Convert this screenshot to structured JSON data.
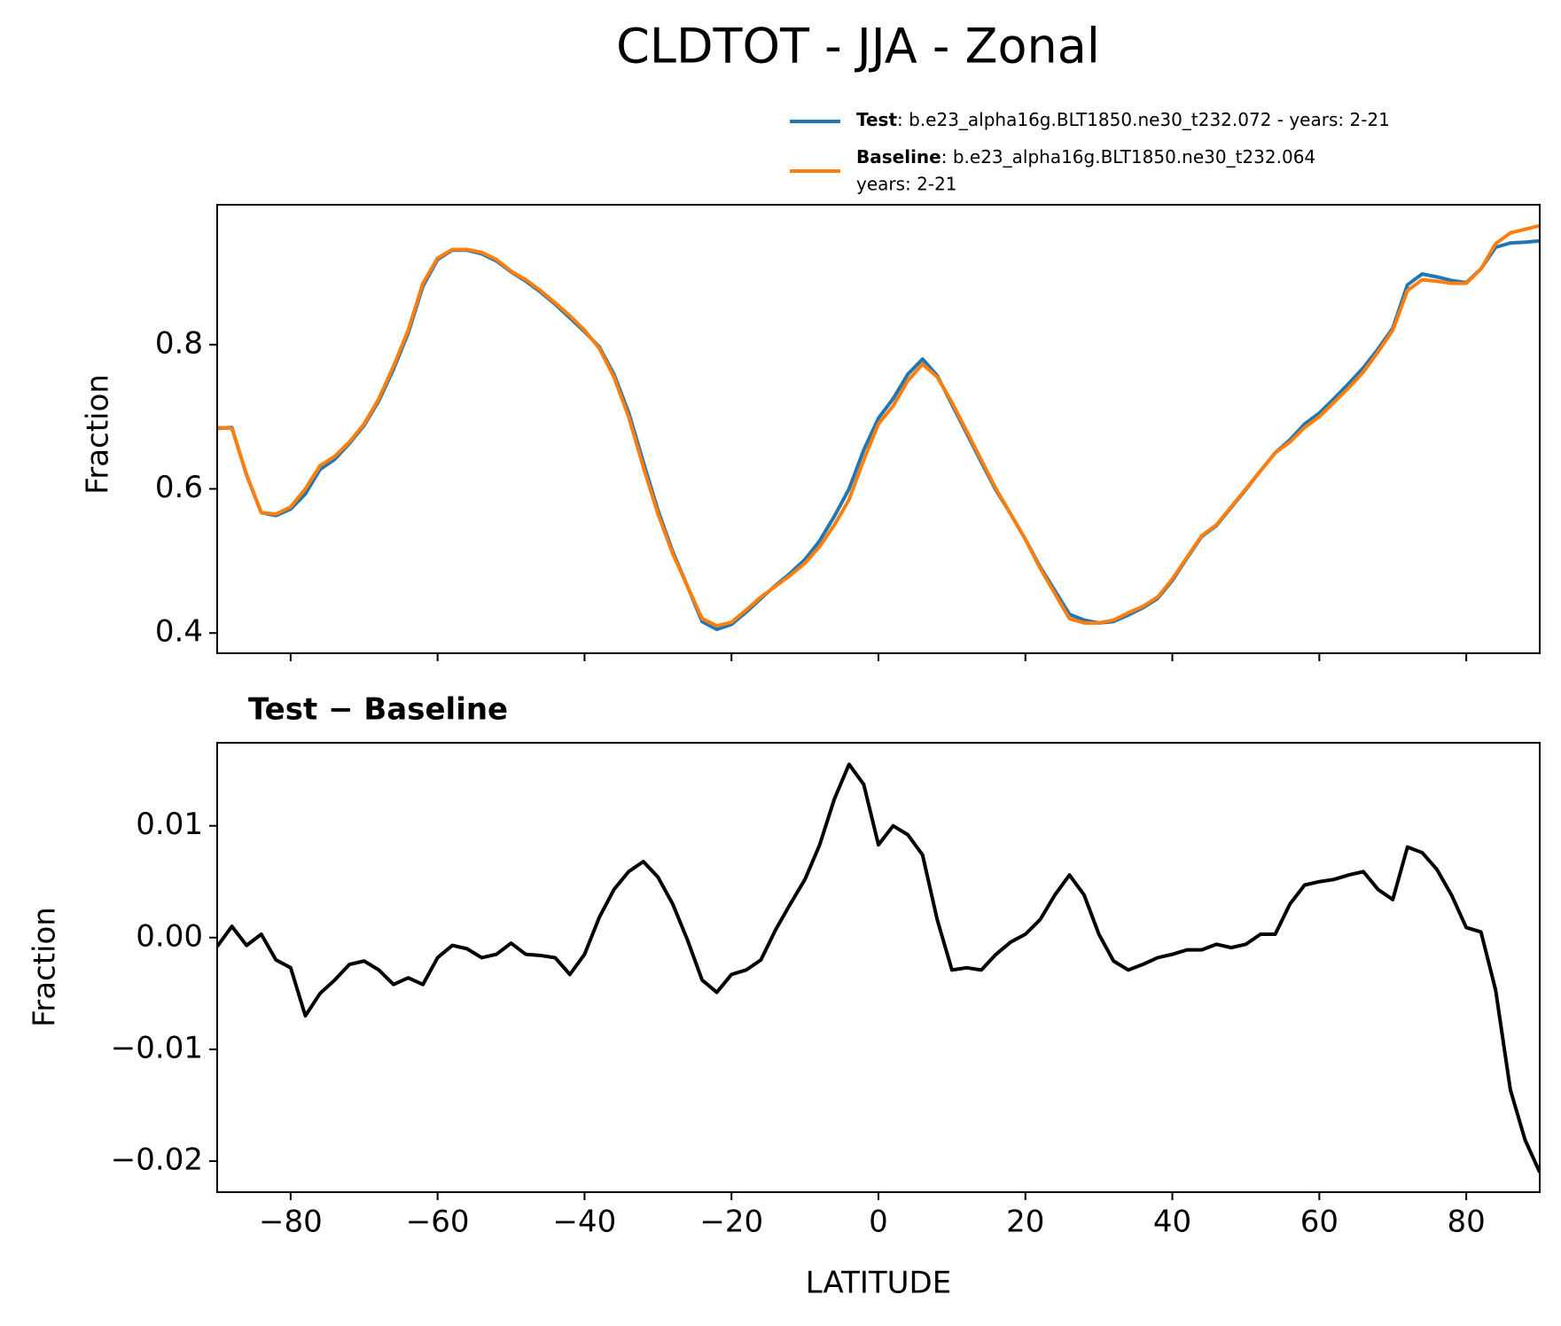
{
  "chart_data": [
    {
      "type": "line",
      "title": "CLDTOT - JJA - Zonal",
      "ylabel": "Fraction",
      "x": [
        -90,
        -88,
        -86,
        -84,
        -82,
        -80,
        -78,
        -76,
        -74,
        -72,
        -70,
        -68,
        -66,
        -64,
        -62,
        -60,
        -58,
        -56,
        -54,
        -52,
        -50,
        -48,
        -46,
        -44,
        -42,
        -40,
        -38,
        -36,
        -34,
        -32,
        -30,
        -28,
        -26,
        -24,
        -22,
        -20,
        -18,
        -16,
        -14,
        -12,
        -10,
        -8,
        -6,
        -4,
        -2,
        0,
        2,
        4,
        6,
        8,
        10,
        12,
        14,
        16,
        18,
        20,
        22,
        24,
        26,
        28,
        30,
        32,
        34,
        36,
        38,
        40,
        42,
        44,
        46,
        48,
        50,
        52,
        54,
        56,
        58,
        60,
        62,
        64,
        66,
        68,
        70,
        72,
        74,
        76,
        78,
        80,
        82,
        84,
        86,
        88,
        90
      ],
      "series": [
        {
          "name": "Test",
          "legend_text": ": b.e23_alpha16g.BLT1850.ne30_t232.072 - years: 2-21",
          "color": "#1f77b4",
          "values": [
            0.684,
            0.685,
            0.619,
            0.567,
            0.563,
            0.572,
            0.593,
            0.627,
            0.641,
            0.663,
            0.688,
            0.722,
            0.766,
            0.816,
            0.881,
            0.918,
            0.931,
            0.931,
            0.926,
            0.916,
            0.901,
            0.888,
            0.873,
            0.856,
            0.837,
            0.818,
            0.797,
            0.759,
            0.706,
            0.637,
            0.57,
            0.513,
            0.465,
            0.416,
            0.405,
            0.412,
            0.429,
            0.448,
            0.466,
            0.483,
            0.502,
            0.528,
            0.562,
            0.6,
            0.654,
            0.698,
            0.725,
            0.759,
            0.78,
            0.757,
            0.717,
            0.677,
            0.637,
            0.598,
            0.565,
            0.53,
            0.492,
            0.459,
            0.426,
            0.418,
            0.414,
            0.416,
            0.425,
            0.435,
            0.448,
            0.473,
            0.504,
            0.534,
            0.549,
            0.574,
            0.599,
            0.625,
            0.65,
            0.668,
            0.69,
            0.705,
            0.725,
            0.746,
            0.768,
            0.794,
            0.823,
            0.883,
            0.898,
            0.894,
            0.889,
            0.886,
            0.905,
            0.935,
            0.941,
            0.942,
            0.944
          ]
        },
        {
          "name": "Baseline",
          "legend_text": [
            ": b.e23_alpha16g.BLT1850.ne30_t232.064",
            "years: 2-21"
          ],
          "color": "#ff7f0e",
          "values": [
            0.685,
            0.684,
            0.62,
            0.567,
            0.565,
            0.575,
            0.6,
            0.632,
            0.645,
            0.665,
            0.69,
            0.725,
            0.77,
            0.82,
            0.885,
            0.92,
            0.932,
            0.932,
            0.928,
            0.918,
            0.902,
            0.89,
            0.875,
            0.858,
            0.84,
            0.82,
            0.795,
            0.755,
            0.7,
            0.63,
            0.565,
            0.51,
            0.465,
            0.42,
            0.41,
            0.415,
            0.432,
            0.45,
            0.465,
            0.48,
            0.497,
            0.52,
            0.55,
            0.585,
            0.64,
            0.69,
            0.715,
            0.75,
            0.773,
            0.755,
            0.72,
            0.68,
            0.64,
            0.6,
            0.565,
            0.53,
            0.49,
            0.455,
            0.42,
            0.414,
            0.414,
            0.418,
            0.428,
            0.437,
            0.45,
            0.475,
            0.505,
            0.535,
            0.55,
            0.575,
            0.6,
            0.625,
            0.65,
            0.665,
            0.685,
            0.7,
            0.72,
            0.74,
            0.762,
            0.79,
            0.82,
            0.875,
            0.89,
            0.888,
            0.885,
            0.885,
            0.905,
            0.94,
            0.955,
            0.96,
            0.965
          ]
        }
      ],
      "xlim": [
        -90,
        90
      ],
      "xticks": [
        -80,
        -60,
        -40,
        -20,
        0,
        20,
        40,
        60,
        80
      ],
      "ylim": [
        0.372,
        0.994
      ],
      "yticks": [
        0.4,
        0.6,
        0.8
      ]
    },
    {
      "type": "line",
      "title": "Test − Baseline",
      "xlabel": "LATITUDE",
      "ylabel": "Fraction",
      "x": [
        -90,
        -88,
        -86,
        -84,
        -82,
        -80,
        -78,
        -76,
        -74,
        -72,
        -70,
        -68,
        -66,
        -64,
        -62,
        -60,
        -58,
        -56,
        -54,
        -52,
        -50,
        -48,
        -46,
        -44,
        -42,
        -40,
        -38,
        -36,
        -34,
        -32,
        -30,
        -28,
        -26,
        -24,
        -22,
        -20,
        -18,
        -16,
        -14,
        -12,
        -10,
        -8,
        -6,
        -4,
        -2,
        0,
        2,
        4,
        6,
        8,
        10,
        12,
        14,
        16,
        18,
        20,
        22,
        24,
        26,
        28,
        30,
        32,
        34,
        36,
        38,
        40,
        42,
        44,
        46,
        48,
        50,
        52,
        54,
        56,
        58,
        60,
        62,
        64,
        66,
        68,
        70,
        72,
        74,
        76,
        78,
        80,
        82,
        84,
        86,
        88,
        90
      ],
      "series": [
        {
          "color": "#000000",
          "values": [
            -0.0008,
            0.001,
            -0.0007,
            0.0003,
            -0.002,
            -0.0027,
            -0.007,
            -0.005,
            -0.0038,
            -0.0024,
            -0.0021,
            -0.0029,
            -0.0042,
            -0.0036,
            -0.0042,
            -0.0018,
            -0.0007,
            -0.001,
            -0.0018,
            -0.0015,
            -0.0005,
            -0.0015,
            -0.0016,
            -0.0018,
            -0.0033,
            -0.0015,
            0.0018,
            0.0043,
            0.0059,
            0.0068,
            0.0054,
            0.003,
            -0.0002,
            -0.0038,
            -0.0049,
            -0.0033,
            -0.0029,
            -0.002,
            0.0007,
            0.003,
            0.0052,
            0.0083,
            0.0124,
            0.0155,
            0.0137,
            0.0083,
            0.01,
            0.0092,
            0.0074,
            0.0016,
            -0.0029,
            -0.0027,
            -0.0029,
            -0.0015,
            -0.0004,
            0.0003,
            0.0016,
            0.0038,
            0.0056,
            0.0038,
            0.0003,
            -0.0021,
            -0.0029,
            -0.0024,
            -0.0018,
            -0.0015,
            -0.0011,
            -0.0011,
            -0.0006,
            -0.0009,
            -0.0006,
            0.0003,
            0.0003,
            0.003,
            0.0047,
            0.005,
            0.0052,
            0.0056,
            0.0059,
            0.0043,
            0.0034,
            0.0081,
            0.0076,
            0.0061,
            0.0038,
            0.0009,
            0.0005,
            -0.0047,
            -0.0136,
            -0.0181,
            -0.021
          ]
        }
      ],
      "xlim": [
        -90,
        90
      ],
      "xticks": [
        {
          "value": -80,
          "label": "−80"
        },
        {
          "value": -60,
          "label": "−60"
        },
        {
          "value": -40,
          "label": "−40"
        },
        {
          "value": -20,
          "label": "−20"
        },
        0,
        20,
        40,
        60,
        80
      ],
      "ylim": [
        -0.02278,
        0.01743
      ],
      "yticks": [
        {
          "value": -0.02,
          "label": "−0.02"
        },
        {
          "value": -0.01,
          "label": "−0.01"
        },
        {
          "value": 0,
          "label": "0.00"
        },
        0.01
      ]
    }
  ]
}
